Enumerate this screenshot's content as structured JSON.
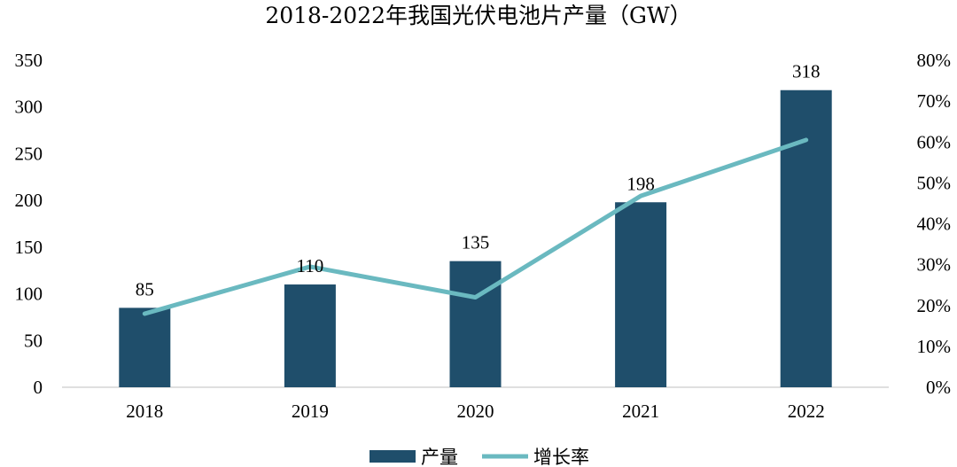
{
  "chart_data": {
    "type": "bar",
    "title": "2018-2022年我国光伏电池片产量（GW）",
    "categories": [
      "2018",
      "2019",
      "2020",
      "2021",
      "2022"
    ],
    "series": [
      {
        "name": "产量",
        "type": "bar",
        "axis": "left",
        "values": [
          85,
          110,
          135,
          198,
          318
        ],
        "color": "#1f4e6b"
      },
      {
        "name": "增长率",
        "type": "line",
        "axis": "right",
        "values": [
          18,
          29.5,
          22,
          46.8,
          60.5
        ],
        "color": "#6ab9c0"
      }
    ],
    "data_labels": [
      "85",
      "110",
      "135",
      "198",
      "318"
    ],
    "left_axis": {
      "min": 0,
      "max": 350,
      "ticks": [
        "0",
        "50",
        "100",
        "150",
        "200",
        "250",
        "300",
        "350"
      ]
    },
    "right_axis": {
      "min": 0,
      "max": 80,
      "ticks": [
        "0%",
        "10%",
        "20%",
        "30%",
        "40%",
        "50%",
        "60%",
        "70%",
        "80%"
      ]
    },
    "grid": false,
    "legend_position": "bottom"
  }
}
